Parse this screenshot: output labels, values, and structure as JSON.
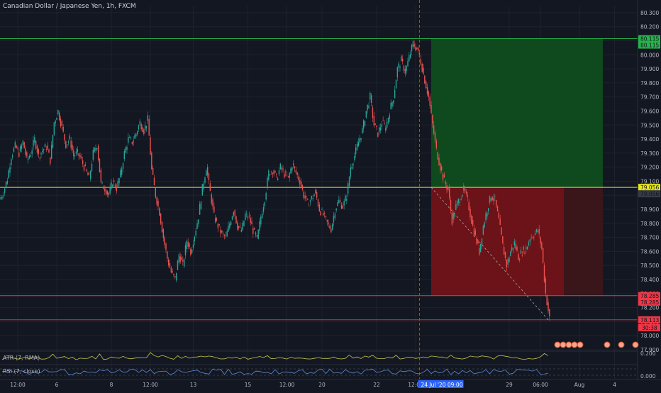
{
  "header": {
    "symbol_title": "Canadian Dollar / Japanese Yen, 1h, FXCM"
  },
  "colors": {
    "background": "#131722",
    "grid": "#1e222d",
    "candle_up": "#26a69a",
    "candle_down": "#ef5350",
    "entry_line": "#e6e619",
    "target_line": "#26b34a",
    "stop_line": "#f23645",
    "profit_zone": "#0f4a1f",
    "loss_zone": "#6b1318",
    "loss_zone_dark": "#3a1519",
    "atr_line": "#c8c84a",
    "rsi_line": "#5b8dd6",
    "crosshair": "#2962ff"
  },
  "chart_data": {
    "type": "candlestick",
    "title": "Canadian Dollar / Japanese Yen, 1h, FXCM",
    "ylim": [
      77.9,
      80.35
    ],
    "y_ticks": [
      "80.300",
      "80.200",
      "80.100",
      "80.000",
      "79.900",
      "79.800",
      "79.700",
      "79.600",
      "79.500",
      "79.400",
      "79.300",
      "79.200",
      "79.100",
      "79.000",
      "78.900",
      "78.800",
      "78.700",
      "78.600",
      "78.500",
      "78.400",
      "78.300",
      "78.200",
      "78.100",
      "78.000",
      "77.900"
    ],
    "x_ticks": [
      {
        "label": "12:00",
        "i": 4
      },
      {
        "label": "6",
        "i": 14
      },
      {
        "label": "8",
        "i": 28
      },
      {
        "label": "12:00",
        "i": 38
      },
      {
        "label": "13",
        "i": 49
      },
      {
        "label": "15",
        "i": 63
      },
      {
        "label": "12:00",
        "i": 73
      },
      {
        "label": "20",
        "i": 82
      },
      {
        "label": "22",
        "i": 96
      },
      {
        "label": "12:00",
        "i": 106
      },
      {
        "label": "29",
        "i": 130
      },
      {
        "label": "06:00",
        "i": 138
      },
      {
        "label": "Aug",
        "i": 148
      },
      {
        "label": "4",
        "i": 157
      }
    ],
    "close_path": [
      79.02,
      79.12,
      79.28,
      79.35,
      79.3,
      79.38,
      79.25,
      79.3,
      79.4,
      79.28,
      79.32,
      79.35,
      79.25,
      79.52,
      79.6,
      79.48,
      79.36,
      79.4,
      79.28,
      79.3,
      79.25,
      79.18,
      79.12,
      79.3,
      79.36,
      79.08,
      79.05,
      79.0,
      79.1,
      79.05,
      79.15,
      79.3,
      79.4,
      79.38,
      79.44,
      79.52,
      79.46,
      79.54,
      79.18,
      79.0,
      78.88,
      78.7,
      78.55,
      78.45,
      78.4,
      78.58,
      78.5,
      78.68,
      78.6,
      78.72,
      78.85,
      79.05,
      79.2,
      79.02,
      78.85,
      78.78,
      78.72,
      78.7,
      78.8,
      78.9,
      78.78,
      78.74,
      78.86,
      78.84,
      78.75,
      78.68,
      78.85,
      78.98,
      79.16,
      79.18,
      79.12,
      79.2,
      79.15,
      79.12,
      79.22,
      79.16,
      79.1,
      79.0,
      78.94,
      78.98,
      79.02,
      78.9,
      78.86,
      78.8,
      78.76,
      78.9,
      78.96,
      78.92,
      79.0,
      79.2,
      79.28,
      79.38,
      79.46,
      79.6,
      79.7,
      79.5,
      79.44,
      79.52,
      79.48,
      79.6,
      79.7,
      79.9,
      79.96,
      79.88,
      79.98,
      80.08,
      80.04,
      79.95,
      79.82,
      79.7,
      79.5,
      79.32,
      79.2,
      79.1,
      79.04,
      78.82,
      78.92,
      78.98,
      79.04,
      78.96,
      78.82,
      78.7,
      78.6,
      78.78,
      78.9,
      79.0,
      78.96,
      78.82,
      78.64,
      78.5,
      78.6,
      78.66,
      78.56,
      78.6,
      78.62,
      78.7,
      78.72,
      78.75,
      78.62,
      78.3,
      78.12
    ],
    "price_labels": [
      {
        "value": 80.115,
        "text": "80.115",
        "color": "#26b34a"
      },
      {
        "value": 80.115,
        "text": "80.115",
        "color": "#26b34a",
        "offset": 1
      },
      {
        "value": 79.056,
        "text": "79.056",
        "color": "#e6e619"
      },
      {
        "value": 79.056,
        "text": "79.056",
        "color": "#363a45",
        "offset": 1
      },
      {
        "value": 78.285,
        "text": "78.285",
        "color": "#f23645"
      },
      {
        "value": 78.285,
        "text": "78.285",
        "color": "#f23645",
        "offset": 1
      },
      {
        "value": 78.113,
        "text": "78.113",
        "color": "#f23645"
      }
    ],
    "countdown": "30:38",
    "levels": {
      "target": 80.115,
      "entry": 79.056,
      "stop": 78.285,
      "current": 78.113
    },
    "position": {
      "start_i": 110,
      "end_i": 154,
      "dark_start_i": 144
    },
    "crosshair": {
      "i": 107,
      "label": "24 Jul '20   09:00"
    },
    "atr": {
      "label": "ATR (7, RMA)",
      "tick": "0.200"
    },
    "rsi": {
      "label": "RSI (7, close)",
      "tick": "0.000"
    }
  }
}
